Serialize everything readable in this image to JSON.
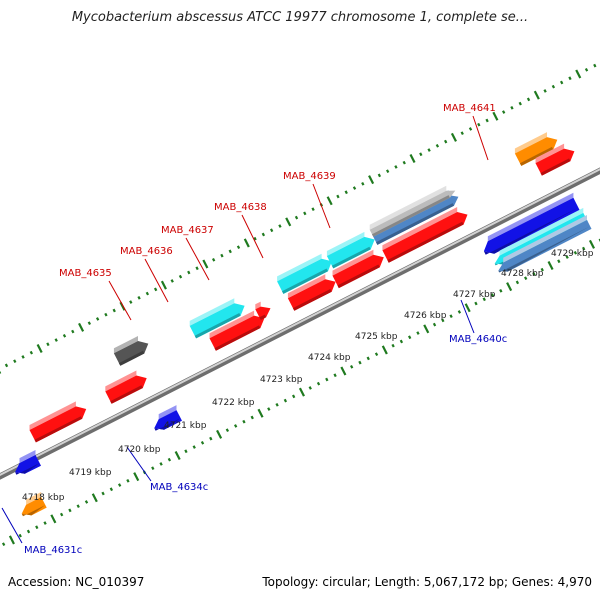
{
  "title": "Mycobacterium abscessus ATCC 19977 chromosome 1, complete se...",
  "footer": {
    "accession": "Accession: NC_010397",
    "summary": "Topology: circular; Length: 5,067,172 bp; Genes: 4,970"
  },
  "colors": {
    "red": "#ff1010",
    "cyan": "#22e6ee",
    "blue": "#1212e6",
    "steel": "#4f86c6",
    "orange": "#ff8c00",
    "gray": "#555555",
    "lightgray": "#bcbcbc",
    "tick": "#1f7a1f",
    "backbone": "#8c8c8c",
    "label_top": "#cc0000",
    "label_bottom": "#0000bb"
  },
  "kbp_labels": [
    "4718 kbp",
    "4719 kbp",
    "4720 kbp",
    "4721 kbp",
    "4722 kbp",
    "4723 kbp",
    "4724 kbp",
    "4725 kbp",
    "4726 kbp",
    "4727 kbp",
    "4728 kbp",
    "4729 kbp"
  ],
  "gene_labels": [
    "MAB_4635",
    "MAB_4636",
    "MAB_4637",
    "MAB_4638",
    "MAB_4639",
    "MAB_4641",
    "MAB_4640c",
    "MAB_4634c",
    "MAB_4631c"
  ]
}
